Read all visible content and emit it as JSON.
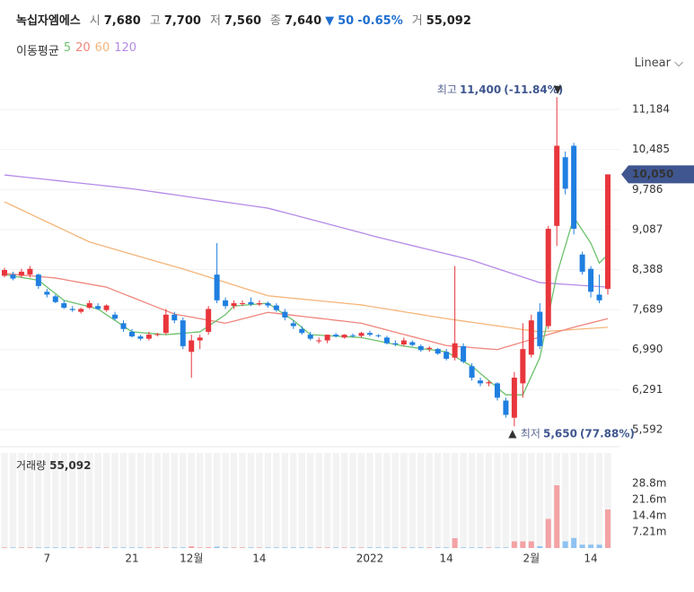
{
  "header": {
    "name": "녹십자엠에스",
    "items": [
      {
        "label": "시",
        "value": "7,680"
      },
      {
        "label": "고",
        "value": "7,700"
      },
      {
        "label": "저",
        "value": "7,560"
      },
      {
        "label": "종",
        "value": "7,640"
      }
    ],
    "change": "50",
    "change_pct": "-0.65%",
    "volume_label": "거",
    "volume": "55,092"
  },
  "legend_title": "이동평균",
  "scale_menu": "Linear",
  "chart_data": {
    "type": "candlestick",
    "categories": [
      null,
      null,
      null,
      null,
      null,
      "7",
      null,
      null,
      null,
      null,
      null,
      null,
      null,
      null,
      null,
      "21",
      null,
      null,
      null,
      null,
      null,
      null,
      "12월",
      null,
      null,
      null,
      null,
      null,
      null,
      null,
      "14",
      null,
      null,
      null,
      null,
      null,
      null,
      null,
      null,
      null,
      null,
      null,
      null,
      "2022",
      null,
      null,
      null,
      null,
      null,
      null,
      null,
      null,
      "14",
      null,
      null,
      null,
      null,
      null,
      null,
      null,
      null,
      null,
      "2월",
      null,
      null,
      null,
      null,
      null,
      null,
      "14",
      null,
      null
    ],
    "candles": {
      "open": [
        8280,
        8300,
        8280,
        8300,
        8300,
        8000,
        7920,
        7800,
        7700,
        7650,
        7720,
        7750,
        7680,
        7600,
        7450,
        7300,
        7220,
        7180,
        7250,
        7280,
        7600,
        7500,
        6950,
        7150,
        7300,
        8300,
        7850,
        7750,
        7800,
        7820,
        7780,
        7800,
        7760,
        7650,
        7450,
        7350,
        7250,
        7150,
        7150,
        7250,
        7200,
        7240,
        7230,
        7280,
        7240,
        7200,
        7100,
        7080,
        7120,
        7050,
        7000,
        7000,
        6950,
        6850,
        7050,
        6700,
        6450,
        6400,
        6400,
        6100,
        5800,
        6400,
        6900,
        7650,
        7400,
        9150,
        10350,
        10550,
        8650,
        8400,
        7950,
        8050
      ],
      "high": [
        8420,
        8350,
        8400,
        8450,
        8320,
        8050,
        7950,
        7850,
        7750,
        7720,
        7850,
        7800,
        7780,
        7650,
        7500,
        7350,
        7250,
        7300,
        7280,
        7700,
        7650,
        7550,
        7250,
        7250,
        7750,
        8850,
        7900,
        7850,
        7850,
        7900,
        7850,
        7830,
        7800,
        7700,
        7500,
        7400,
        7300,
        7200,
        7250,
        7280,
        7260,
        7270,
        7300,
        7320,
        7260,
        7230,
        7150,
        7200,
        7150,
        7080,
        7050,
        7020,
        7000,
        8450,
        7100,
        6750,
        6500,
        6450,
        6420,
        6150,
        6600,
        7450,
        7600,
        7800,
        9150,
        11400,
        10450,
        10600,
        8700,
        8450,
        8300,
        10050
      ],
      "low": [
        8250,
        8200,
        8250,
        8250,
        8050,
        7900,
        7800,
        7700,
        7650,
        7620,
        7700,
        7680,
        7650,
        7500,
        7300,
        7200,
        7150,
        7150,
        7220,
        7250,
        7450,
        7000,
        6500,
        7000,
        7250,
        7800,
        7700,
        7700,
        7750,
        7750,
        7750,
        7720,
        7650,
        7500,
        7350,
        7250,
        7150,
        7100,
        7100,
        7200,
        7180,
        7200,
        7200,
        7220,
        7200,
        7080,
        7050,
        7050,
        7050,
        6950,
        6950,
        6900,
        6800,
        6800,
        6750,
        6450,
        6350,
        6350,
        6100,
        5800,
        5650,
        6150,
        6850,
        7000,
        7350,
        8800,
        9700,
        9000,
        8300,
        7900,
        7800,
        7950
      ],
      "close": [
        8380,
        8230,
        8350,
        8400,
        8100,
        7950,
        7820,
        7720,
        7680,
        7700,
        7800,
        7700,
        7760,
        7530,
        7350,
        7220,
        7180,
        7250,
        7260,
        7600,
        7500,
        7050,
        7150,
        7200,
        7700,
        7850,
        7750,
        7800,
        7800,
        7780,
        7800,
        7760,
        7680,
        7550,
        7400,
        7280,
        7180,
        7150,
        7250,
        7220,
        7250,
        7230,
        7280,
        7250,
        7230,
        7100,
        7080,
        7150,
        7070,
        6980,
        7020,
        6920,
        6830,
        7100,
        6780,
        6500,
        6400,
        6420,
        6150,
        5850,
        6500,
        7000,
        7500,
        7050,
        9100,
        10550,
        9800,
        9100,
        8350,
        8000,
        7850,
        10050
      ],
      "up_color": "#e8363c",
      "down_color": "#1f7fe0"
    },
    "series": [
      {
        "name": "5",
        "color": "#6cc16c",
        "values": [
          8300,
          8275,
          8250,
          8225,
          8200,
          8083,
          7967,
          7850,
          7813,
          7775,
          7738,
          7700,
          7600,
          7500,
          7400,
          7300,
          7288,
          7275,
          7263,
          7250,
          7263,
          7275,
          7288,
          7300,
          7400,
          7500,
          7600,
          7750,
          7763,
          7775,
          7788,
          7800,
          7700,
          7600,
          7500,
          7375,
          7250,
          7242,
          7233,
          7225,
          7217,
          7208,
          7200,
          7170,
          7140,
          7110,
          7080,
          7050,
          7030,
          7010,
          6990,
          6970,
          6950,
          6867,
          6783,
          6700,
          6575,
          6450,
          6325,
          6200,
          6200,
          6200,
          6525,
          6850,
          7575,
          8300,
          8800,
          9300,
          9075,
          8850,
          8500,
          8650
        ]
      },
      {
        "name": "20",
        "color": "#f0857c",
        "values": [
          8320,
          8307,
          8293,
          8280,
          8267,
          8253,
          8240,
          8213,
          8187,
          8160,
          8133,
          8107,
          8080,
          8021,
          7962,
          7904,
          7845,
          7786,
          7727,
          7669,
          7610,
          7583,
          7557,
          7530,
          7503,
          7477,
          7450,
          7488,
          7526,
          7564,
          7602,
          7640,
          7623,
          7606,
          7588,
          7571,
          7554,
          7537,
          7520,
          7502,
          7485,
          7468,
          7450,
          7411,
          7372,
          7333,
          7294,
          7255,
          7216,
          7177,
          7138,
          7099,
          7060,
          7048,
          7037,
          7025,
          7013,
          7002,
          6990,
          7034,
          7078,
          7122,
          7166,
          7210,
          7253,
          7295,
          7338,
          7380,
          7418,
          7455,
          7493,
          7530
        ]
      },
      {
        "name": "60",
        "color": "#f5b57a",
        "values": [
          9570,
          9500,
          9430,
          9360,
          9290,
          9220,
          9150,
          9080,
          9010,
          8940,
          8870,
          8827,
          8784,
          8741,
          8698,
          8655,
          8612,
          8569,
          8526,
          8483,
          8440,
          8400,
          8353,
          8306,
          8259,
          8212,
          8165,
          8118,
          8071,
          8024,
          7977,
          7930,
          7915,
          7901,
          7886,
          7872,
          7857,
          7843,
          7828,
          7814,
          7799,
          7785,
          7770,
          7746,
          7722,
          7698,
          7674,
          7650,
          7626,
          7602,
          7578,
          7554,
          7530,
          7509,
          7488,
          7467,
          7446,
          7425,
          7404,
          7383,
          7362,
          7341,
          7320,
          7300,
          7310,
          7320,
          7330,
          7340,
          7350,
          7360,
          7370,
          7380
        ]
      },
      {
        "name": "120",
        "color": "#b58ae8",
        "values": [
          10040,
          10024,
          10008,
          9992,
          9976,
          9960,
          9944,
          9928,
          9912,
          9896,
          9880,
          9864,
          9848,
          9832,
          9816,
          9800,
          9779,
          9757,
          9736,
          9715,
          9694,
          9672,
          9651,
          9630,
          9609,
          9587,
          9566,
          9545,
          9524,
          9502,
          9481,
          9460,
          9421,
          9382,
          9343,
          9304,
          9265,
          9226,
          9187,
          9148,
          9108,
          9069,
          9030,
          8990,
          8950,
          8914,
          8878,
          8842,
          8806,
          8770,
          8734,
          8698,
          8662,
          8626,
          8590,
          8550,
          8501,
          8452,
          8403,
          8354,
          8305,
          8256,
          8207,
          8160,
          8150,
          8140,
          8130,
          8120,
          8110,
          8100,
          8090,
          8080
        ]
      }
    ],
    "ylim": [
      5341,
      11764
    ],
    "yticks": [
      {
        "value": 5592,
        "label": "5,592"
      },
      {
        "value": 6291,
        "label": "6,291"
      },
      {
        "value": 6990,
        "label": "6,990"
      },
      {
        "value": 7689,
        "label": "7,689"
      },
      {
        "value": 8388,
        "label": "8,388"
      },
      {
        "value": 9087,
        "label": "9,087"
      },
      {
        "value": 9786,
        "label": "9,786"
      },
      {
        "value": 10485,
        "label": "10,485"
      },
      {
        "value": 11184,
        "label": "11,184"
      }
    ],
    "grid": true,
    "last_price": {
      "value": 10050,
      "label": "10,050"
    },
    "high_note": {
      "prefix": "최고",
      "value": 11400,
      "label": "11,400",
      "change": "(-11.84%)"
    },
    "low_note": {
      "prefix": "최저",
      "value": 5650,
      "label": "5,650",
      "change": "(77.88%)"
    },
    "volume": {
      "title": "거래량",
      "current": "55,092",
      "values": [
        300000,
        300000,
        300000,
        300000,
        300000,
        300000,
        300000,
        300000,
        300000,
        300000,
        300000,
        300000,
        300000,
        300000,
        300000,
        300000,
        300000,
        300000,
        300000,
        300000,
        300000,
        300000,
        800000,
        300000,
        400000,
        600000,
        300000,
        300000,
        300000,
        300000,
        300000,
        300000,
        300000,
        300000,
        300000,
        300000,
        300000,
        300000,
        300000,
        300000,
        300000,
        300000,
        300000,
        300000,
        300000,
        300000,
        300000,
        300000,
        300000,
        300000,
        300000,
        300000,
        300000,
        4400000,
        300000,
        300000,
        300000,
        300000,
        300000,
        300000,
        3000000,
        3000000,
        3000000,
        800000,
        13000000,
        28000000,
        3000000,
        4500000,
        1500000,
        1500000,
        1500000,
        17200000
      ],
      "ylim": [
        0,
        42400000
      ],
      "yticks": [
        {
          "value": 7210000,
          "label": "7.21m"
        },
        {
          "value": 14400000,
          "label": "14.4m"
        },
        {
          "value": 21600000,
          "label": "21.6m"
        },
        {
          "value": 28800000,
          "label": "28.8m"
        }
      ],
      "up_color": "#f4a3a5",
      "down_color": "#8fc2f2"
    }
  }
}
